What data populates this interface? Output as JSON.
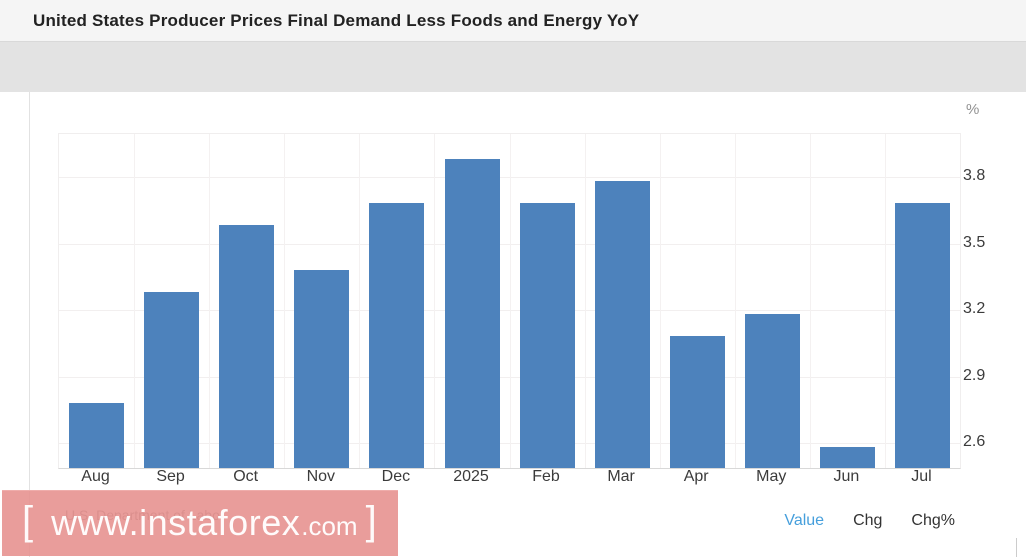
{
  "header": {
    "title": "United States Producer Prices Final Demand Less Foods and Energy YoY"
  },
  "chart_data": {
    "type": "bar",
    "title": "United States Producer Prices Final Demand Less Foods and Energy YoY",
    "categories": [
      "Aug",
      "Sep",
      "Oct",
      "Nov",
      "Dec",
      "2025",
      "Feb",
      "Mar",
      "Apr",
      "May",
      "Jun",
      "Jul"
    ],
    "values": [
      2.8,
      3.3,
      3.6,
      3.4,
      3.7,
      3.9,
      3.7,
      3.8,
      3.1,
      3.2,
      2.6,
      3.7
    ],
    "unit": "%",
    "ylabel": "%",
    "xlabel": "",
    "yticks": [
      2.6,
      2.9,
      3.2,
      3.5,
      3.8
    ],
    "ylim": [
      2.49,
      3.99
    ],
    "grid": true,
    "legend": "none",
    "bar_color": "#4d82bc",
    "source": "U.S. Department of Labor"
  },
  "footer": {
    "watermark": {
      "bracket_left": "[",
      "text": "www.instaforex",
      "suffix": ".com",
      "bracket_right": "]",
      "background_color": "#e6908d"
    },
    "links": [
      {
        "label": "Value",
        "active": true
      },
      {
        "label": "Chg",
        "active": false
      },
      {
        "label": "Chg%",
        "active": false
      }
    ],
    "active_link_color": "#469fdc"
  }
}
